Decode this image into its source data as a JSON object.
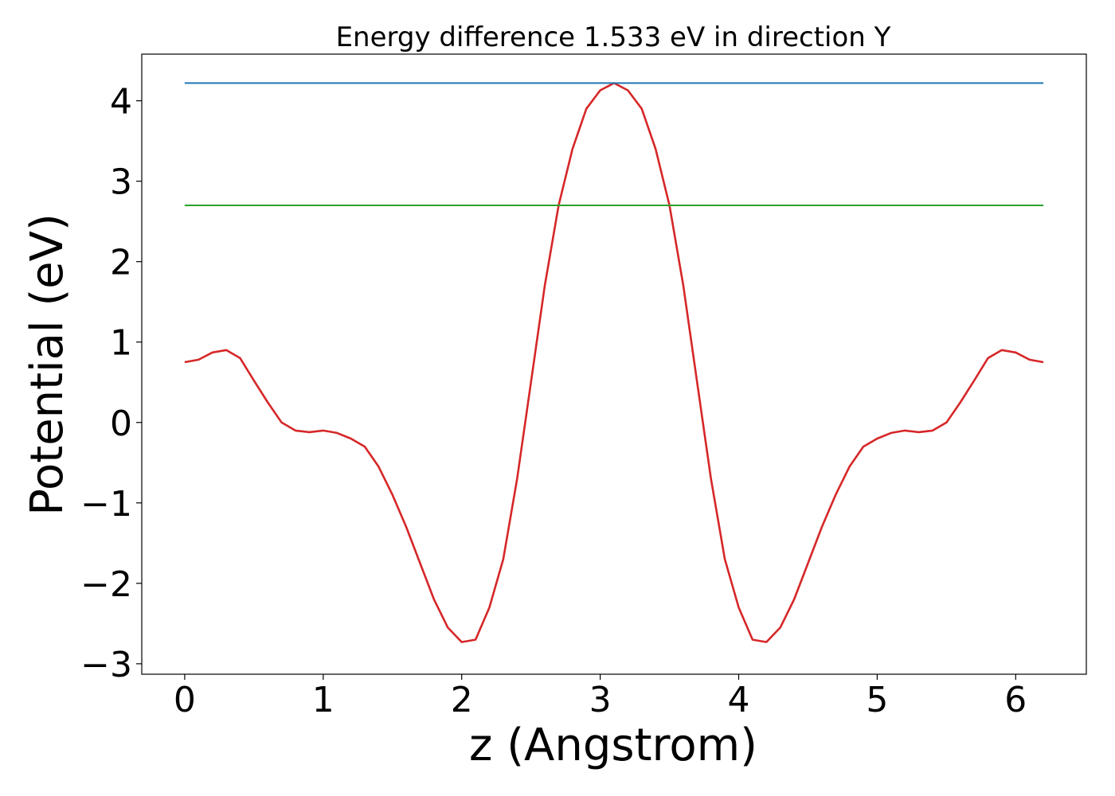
{
  "chart_data": {
    "type": "line",
    "title": "Energy difference 1.533 eV in direction Y",
    "xlabel": "z (Angstrom)",
    "ylabel": "Potential (eV)",
    "xlim": [
      -0.31,
      6.51
    ],
    "ylim": [
      -3.13,
      4.58
    ],
    "grid": false,
    "legend": "none",
    "x_ticks": [
      0,
      1,
      2,
      3,
      4,
      5,
      6
    ],
    "x_tick_labels": [
      "0",
      "1",
      "2",
      "3",
      "4",
      "5",
      "6"
    ],
    "y_ticks": [
      -3,
      -2,
      -1,
      0,
      1,
      2,
      3,
      4
    ],
    "y_tick_labels": [
      "−3",
      "−2",
      "−1",
      "0",
      "1",
      "2",
      "3",
      "4"
    ],
    "series": [
      {
        "color": "#d62728",
        "kind": "line",
        "x": [
          0,
          0.1,
          0.2,
          0.3,
          0.4,
          0.5,
          0.6,
          0.7,
          0.8,
          0.9,
          1.0,
          1.1,
          1.2,
          1.3,
          1.4,
          1.5,
          1.6,
          1.7,
          1.8,
          1.9,
          2.0,
          2.1,
          2.2,
          2.3,
          2.4,
          2.5,
          2.6,
          2.7,
          2.8,
          2.9,
          3.0,
          3.1,
          3.2,
          3.3,
          3.4,
          3.5,
          3.6,
          3.7,
          3.8,
          3.9,
          4.0,
          4.1,
          4.2,
          4.3,
          4.4,
          4.5,
          4.6,
          4.7,
          4.8,
          4.9,
          5.0,
          5.1,
          5.2,
          5.3,
          5.4,
          5.5,
          5.6,
          5.7,
          5.8,
          5.9,
          6.0,
          6.1,
          6.2
        ],
        "y": [
          0.75,
          0.78,
          0.87,
          0.9,
          0.8,
          0.52,
          0.25,
          0.0,
          -0.1,
          -0.12,
          -0.1,
          -0.13,
          -0.2,
          -0.3,
          -0.55,
          -0.9,
          -1.3,
          -1.75,
          -2.2,
          -2.55,
          -2.73,
          -2.7,
          -2.3,
          -1.7,
          -0.7,
          0.5,
          1.7,
          2.7,
          3.4,
          3.9,
          4.13,
          4.22,
          4.13,
          3.9,
          3.4,
          2.7,
          1.7,
          0.5,
          -0.7,
          -1.7,
          -2.3,
          -2.7,
          -2.73,
          -2.55,
          -2.2,
          -1.75,
          -1.3,
          -0.9,
          -0.55,
          -0.3,
          -0.2,
          -0.13,
          -0.1,
          -0.12,
          -0.1,
          0.0,
          0.25,
          0.52,
          0.8,
          0.9,
          0.87,
          0.78,
          0.75
        ]
      },
      {
        "color": "#1f77b4",
        "kind": "hline",
        "x": [
          0,
          6.2
        ],
        "y": [
          4.22,
          4.22
        ]
      },
      {
        "color": "#2ca02c",
        "kind": "hline",
        "x": [
          0,
          6.2
        ],
        "y": [
          2.7,
          2.7
        ]
      }
    ]
  }
}
